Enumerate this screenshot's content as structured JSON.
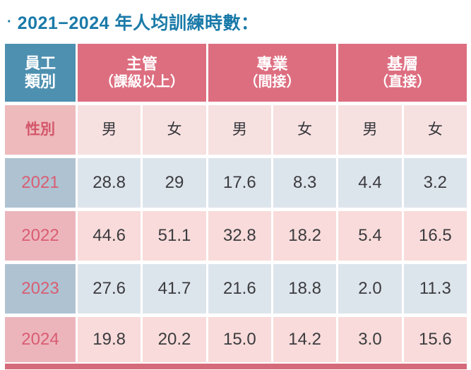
{
  "title": {
    "bullet": "·",
    "text": "2021−2024 年人均訓練時數："
  },
  "colors": {
    "title_blue": "#1a7aa9",
    "corner_header_blue": "#4e90b0",
    "group_header_pink": "#dd6e80",
    "gender_label_bg": "#eebabc",
    "gender_cell_bg": "#f7e0e0",
    "year_blue_bg": "#aec2d2",
    "value_blue_bg": "#dde5ec",
    "year_pink_bg": "#ecb5bc",
    "value_pink_bg": "#f8dbda",
    "year_text_pink": "#d95d72",
    "bottom_bar_pink": "#d46a7a"
  },
  "table": {
    "corner": {
      "line1": "員工",
      "line2": "類別"
    },
    "groups": [
      {
        "line1": "主管",
        "line2": "（課級以上）"
      },
      {
        "line1": "專業",
        "line2": "（間接）"
      },
      {
        "line1": "基層",
        "line2": "（直接）"
      }
    ],
    "gender": {
      "label": "性別",
      "cells": [
        "男",
        "女",
        "男",
        "女",
        "男",
        "女"
      ]
    },
    "rows": [
      {
        "year": "2021",
        "theme": "blue",
        "values": [
          "28.8",
          "29",
          "17.6",
          "8.3",
          "4.4",
          "3.2"
        ]
      },
      {
        "year": "2022",
        "theme": "pink",
        "values": [
          "44.6",
          "51.1",
          "32.8",
          "18.2",
          "5.4",
          "16.5"
        ]
      },
      {
        "year": "2023",
        "theme": "blue",
        "values": [
          "27.6",
          "41.7",
          "21.6",
          "18.8",
          "2.0",
          "11.3"
        ]
      },
      {
        "year": "2024",
        "theme": "pink",
        "values": [
          "19.8",
          "20.2",
          "15.0",
          "14.2",
          "3.0",
          "15.6"
        ]
      }
    ]
  },
  "chart_data": {
    "type": "table",
    "title": "2021−2024 年人均訓練時數",
    "column_groups": [
      "主管（課級以上）",
      "專業（間接）",
      "基層（直接）"
    ],
    "columns": [
      "主管-男",
      "主管-女",
      "專業-男",
      "專業-女",
      "基層-男",
      "基層-女"
    ],
    "rows": [
      {
        "year": 2021,
        "values": [
          28.8,
          29,
          17.6,
          8.3,
          4.4,
          3.2
        ]
      },
      {
        "year": 2022,
        "values": [
          44.6,
          51.1,
          32.8,
          18.2,
          5.4,
          16.5
        ]
      },
      {
        "year": 2023,
        "values": [
          27.6,
          41.7,
          21.6,
          18.8,
          2.0,
          11.3
        ]
      },
      {
        "year": 2024,
        "values": [
          19.8,
          20.2,
          15.0,
          14.2,
          3.0,
          15.6
        ]
      }
    ]
  }
}
